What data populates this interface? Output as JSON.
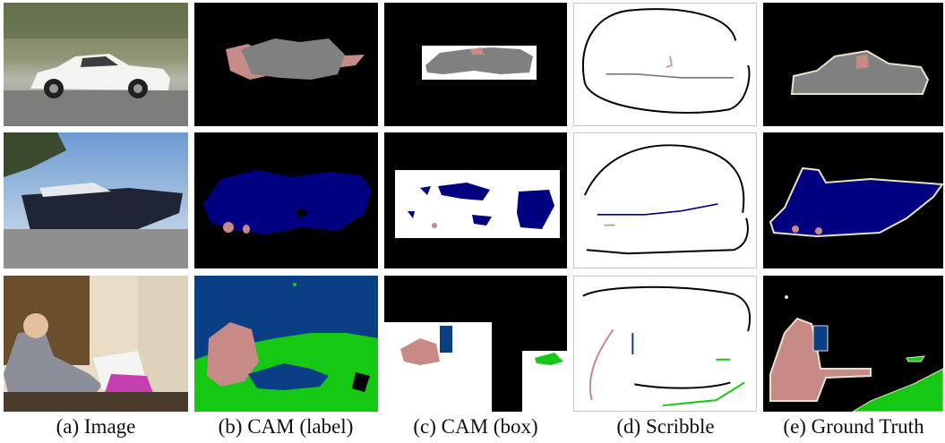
{
  "figure": {
    "columns": [
      {
        "id": "image",
        "label": "(a) Image"
      },
      {
        "id": "cam_label",
        "label": "(b) CAM (label)"
      },
      {
        "id": "cam_box",
        "label": "(c) CAM (box)"
      },
      {
        "id": "scribble",
        "label": "(d) Scribble"
      },
      {
        "id": "ground_truth",
        "label": "(e) Ground Truth"
      }
    ],
    "rows": [
      {
        "scene": "car"
      },
      {
        "scene": "boat"
      },
      {
        "scene": "living-room"
      }
    ],
    "class_colors": {
      "background": "#000000",
      "person": "#c88a86",
      "car": "#808080",
      "boat": "#000080",
      "tvmonitor": "#0a3f86",
      "sofa": "#14c814",
      "ignore": "#e8e2c8",
      "box_fill": "#ffffff",
      "scribble_background": "#000000"
    }
  }
}
